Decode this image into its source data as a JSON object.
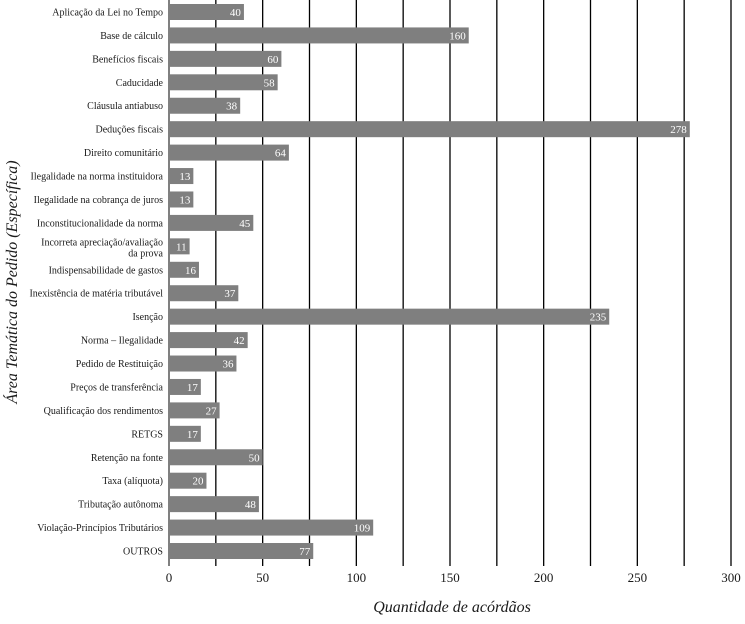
{
  "chart_data": {
    "type": "bar",
    "orientation": "horizontal",
    "xlabel": "Quantidade de acórdãos",
    "ylabel": "Área Temática do Pedido (Específica)",
    "xlim": [
      0,
      300
    ],
    "xticks": [
      0,
      50,
      100,
      150,
      200,
      250,
      300
    ],
    "grid": "vertical lines every 25",
    "colors": {
      "bar": "#7f7f7f",
      "bar_label": "#ffffff",
      "grid": "#000000"
    },
    "categories": [
      "Aplicação da Lei no Tempo",
      "Base de cálculo",
      "Benefícios fiscais",
      "Caducidade",
      "Cláusula antiabuso",
      "Deduções fiscais",
      "Direito comunitário",
      "Ilegalidade na norma instituidora",
      "Ilegalidade na cobrança de juros",
      "Inconstitucionalidade da norma",
      "Incorreta apreciação/avaliação da prova",
      "Indispensabilidade de gastos",
      "Inexistência de matéria tributável",
      "Isenção",
      "Norma – Ilegalidade",
      "Pedido de Restituição",
      "Preços de transferência",
      "Qualificação dos rendimentos",
      "RETGS",
      "Retenção na fonte",
      "Taxa (alíquota)",
      "Tributação autônoma",
      "Violação-Princípios Tributários",
      "OUTROS"
    ],
    "values": [
      40,
      160,
      60,
      58,
      38,
      278,
      64,
      13,
      13,
      45,
      11,
      16,
      37,
      235,
      42,
      36,
      17,
      27,
      17,
      50,
      20,
      48,
      109,
      77
    ]
  }
}
